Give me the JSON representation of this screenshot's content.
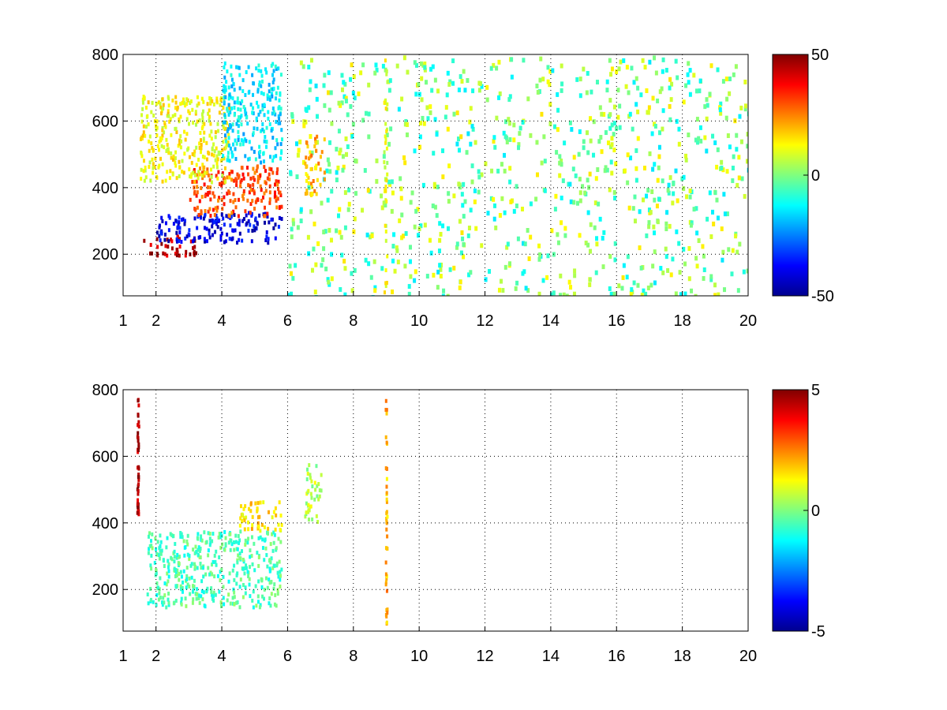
{
  "chart_data": [
    {
      "type": "heatmap",
      "title": "",
      "xlabel": "",
      "ylabel": "",
      "xlim": [
        1,
        20
      ],
      "ylim": [
        75,
        800
      ],
      "grid": true,
      "xticks": [
        1,
        2,
        4,
        6,
        8,
        10,
        12,
        14,
        16,
        18,
        20
      ],
      "yticks": [
        200,
        400,
        600,
        800
      ],
      "colorbar": {
        "range": [
          -50,
          50
        ],
        "ticks": [
          "50",
          "0",
          "-50"
        ],
        "colormap": "jet"
      },
      "features": [
        {
          "x": [
            1.6,
            3.2
          ],
          "y": [
            200,
            260
          ],
          "value": 45
        },
        {
          "x": [
            2.0,
            5.8
          ],
          "y": [
            240,
            330
          ],
          "value": -40
        },
        {
          "x": [
            3.0,
            5.8
          ],
          "y": [
            320,
            470
          ],
          "value": 30
        },
        {
          "x": [
            1.5,
            4.2
          ],
          "y": [
            420,
            680
          ],
          "value": 12
        },
        {
          "x": [
            4.0,
            5.8
          ],
          "y": [
            480,
            780
          ],
          "value": -15
        },
        {
          "x": [
            6.5,
            7.1
          ],
          "y": [
            380,
            560
          ],
          "value": 20
        },
        {
          "x": [
            8.9,
            9.0
          ],
          "y": [
            75,
            800
          ],
          "value": 10
        }
      ]
    },
    {
      "type": "heatmap",
      "title": "",
      "xlabel": "",
      "ylabel": "",
      "xlim": [
        1,
        20
      ],
      "ylim": [
        75,
        800
      ],
      "grid": true,
      "xticks": [
        1,
        2,
        4,
        6,
        8,
        10,
        12,
        14,
        16,
        18,
        20
      ],
      "yticks": [
        200,
        400,
        600,
        800
      ],
      "colorbar": {
        "range": [
          -5,
          5
        ],
        "ticks": [
          "5",
          "0",
          "-5"
        ],
        "colormap": "jet"
      },
      "features": [
        {
          "x": [
            1.7,
            5.8
          ],
          "y": [
            150,
            380
          ],
          "value": -0.5
        },
        {
          "x": [
            4.5,
            5.8
          ],
          "y": [
            380,
            470
          ],
          "value": 1.5
        },
        {
          "x": [
            6.5,
            7.0
          ],
          "y": [
            400,
            580
          ],
          "value": 0.5
        },
        {
          "x": [
            1.4,
            1.45
          ],
          "y": [
            420,
            780
          ],
          "value": 4.5
        },
        {
          "x": [
            8.95,
            9.0
          ],
          "y": [
            100,
            780
          ],
          "value": 2
        }
      ]
    }
  ]
}
